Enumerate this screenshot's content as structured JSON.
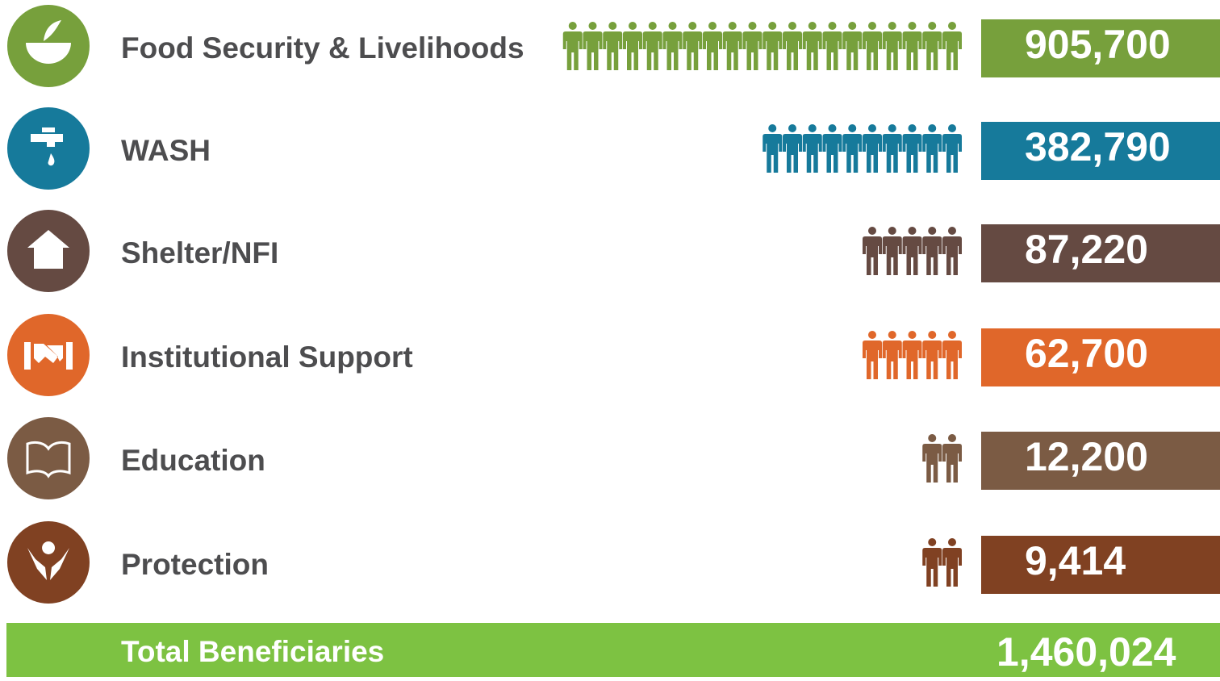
{
  "rows": [
    {
      "label": "Food Security & Livelihoods",
      "value": "905,700",
      "color": "#77a03c",
      "icons": 20
    },
    {
      "label": "WASH",
      "value": "382,790",
      "color": "#167a9b",
      "icons": 10
    },
    {
      "label": "Shelter/NFI",
      "value": "87,220",
      "color": "#654a42",
      "icons": 5
    },
    {
      "label": "Institutional Support",
      "value": "62,700",
      "color": "#e0672a",
      "icons": 5
    },
    {
      "label": "Education",
      "value": "12,200",
      "color": "#7b5b44",
      "icons": 2
    },
    {
      "label": "Protection",
      "value": "9,414",
      "color": "#804122",
      "icons": 2
    }
  ],
  "total": {
    "label": "Total Beneficiaries",
    "value": "1,460,024",
    "color": "#7dc242"
  }
}
